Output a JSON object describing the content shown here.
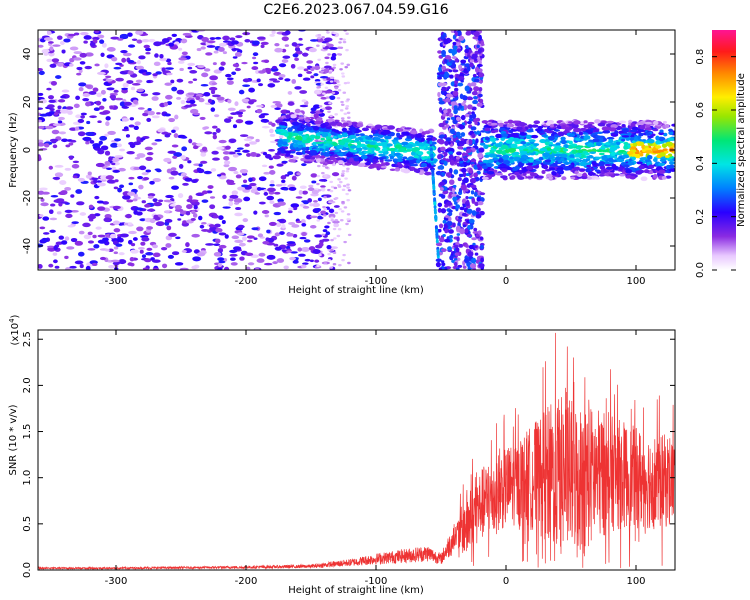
{
  "figure": {
    "title": "C2E6.2023.067.04.59.G16"
  },
  "chart_data": [
    {
      "type": "heatmap",
      "title": "",
      "xlabel": "Height of straight line (km)",
      "ylabel": "Frequency (Hz)",
      "xlim": [
        -360,
        130
      ],
      "ylim": [
        -50,
        50
      ],
      "xticks": [
        -300,
        -200,
        -100,
        0,
        100
      ],
      "yticks": [
        -40,
        -20,
        0,
        20,
        40
      ],
      "colorbar": {
        "label": "Normalized spectral amplitude",
        "range": [
          0.0,
          0.9
        ],
        "ticks": [
          0.0,
          0.2,
          0.4,
          0.6,
          0.8
        ],
        "colormap": "rainbow (white-purple-blue-cyan-green-yellow-red-magenta)"
      },
      "features": [
        {
          "x_range": [
            -360,
            -130
          ],
          "description": "broadband noise, all frequencies, low amplitude (~0.1-0.2)"
        },
        {
          "x_range": [
            -130,
            -55
          ],
          "freq_center_hz": 5,
          "amplitude": 0.4,
          "note": "narrow band near 0-10 Hz, slightly negative slope"
        },
        {
          "x_range": [
            -52,
            -18
          ],
          "description": "dense broadband vertical band, all frequencies"
        },
        {
          "x_range": [
            -18,
            130
          ],
          "freq_center_hz": 0,
          "amplitude": 0.45,
          "note": "narrow band near 0 Hz, peaks up to ~0.8 near 100-130 km"
        }
      ]
    },
    {
      "type": "line",
      "title": "",
      "xlabel": "Height of straight line (km)",
      "ylabel": "SNR (10 * v/v)",
      "y_scale_note": "(x10",
      "y_scale_exp": "4",
      "xlim": [
        -360,
        130
      ],
      "ylim": [
        0,
        2.6
      ],
      "xticks": [
        -300,
        -200,
        -100,
        0,
        100
      ],
      "yticks": [
        0.0,
        0.5,
        1.0,
        1.5,
        2.0,
        2.5
      ],
      "series": [
        {
          "color": "#ee3333",
          "x": [
            -360,
            -300,
            -200,
            -150,
            -120,
            -100,
            -80,
            -60,
            -50,
            -40,
            -30,
            -20,
            -10,
            0,
            20,
            40,
            60,
            80,
            100,
            120,
            130
          ],
          "y": [
            0.02,
            0.02,
            0.03,
            0.04,
            0.08,
            0.12,
            0.15,
            0.18,
            0.12,
            0.35,
            0.5,
            0.7,
            0.8,
            0.9,
            1.0,
            1.05,
            1.0,
            1.05,
            1.0,
            0.95,
            1.0
          ],
          "peak_envelope": [
            {
              "x": -40,
              "y": 0.5
            },
            {
              "x": -30,
              "y": 1.2
            },
            {
              "x": -10,
              "y": 1.6
            },
            {
              "x": 10,
              "y": 1.8
            },
            {
              "x": 30,
              "y": 2.3
            },
            {
              "x": 38,
              "y": 2.6
            },
            {
              "x": 60,
              "y": 2.5
            },
            {
              "x": 80,
              "y": 2.2
            },
            {
              "x": 100,
              "y": 2.0
            },
            {
              "x": 120,
              "y": 1.9
            }
          ]
        }
      ]
    }
  ]
}
